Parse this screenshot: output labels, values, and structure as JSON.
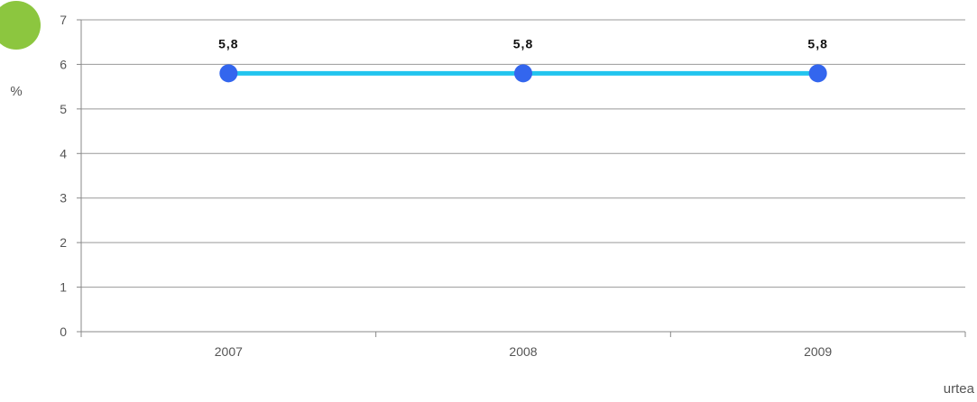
{
  "brand": {
    "badge_color": "#8cc63f"
  },
  "chart_data": {
    "type": "line",
    "title": "",
    "xlabel": "urtea",
    "ylabel": "%",
    "categories": [
      "2007",
      "2008",
      "2009"
    ],
    "series": [
      {
        "values": [
          5.8,
          5.8,
          5.8
        ],
        "data_labels": [
          "5,8",
          "5,8",
          "5,8"
        ],
        "line_color": "#22c4ee",
        "marker_color": "#3366ee"
      }
    ],
    "ylim": [
      0,
      7
    ],
    "yticks": [
      0,
      1,
      2,
      3,
      4,
      5,
      6,
      7
    ],
    "grid": true,
    "legend": "none",
    "axis_color": "#888888",
    "grid_color": "#999999"
  }
}
